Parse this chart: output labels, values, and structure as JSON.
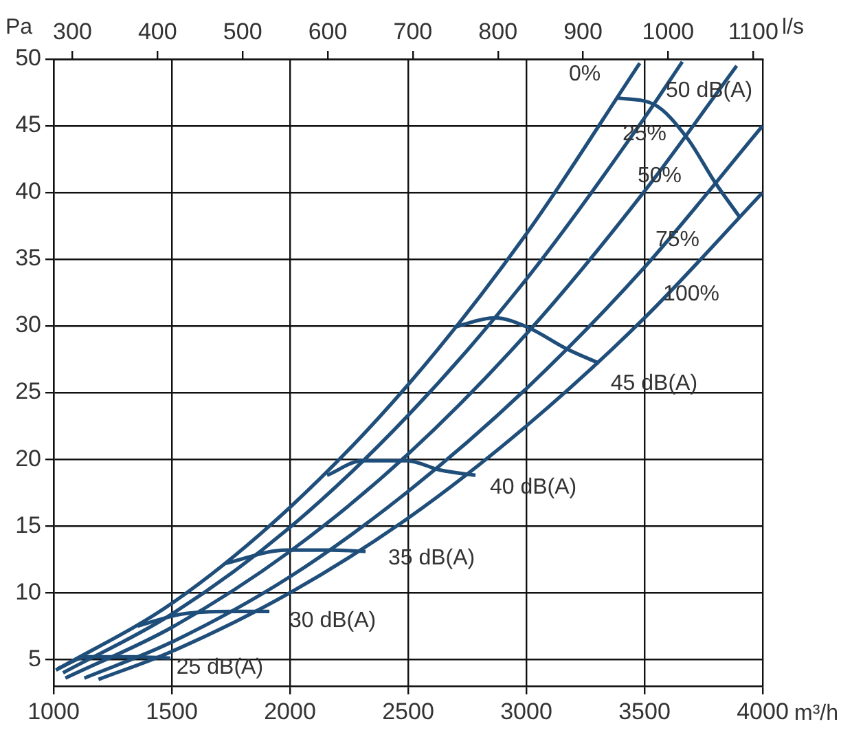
{
  "chart_data": {
    "type": "line",
    "xlabel": "m³/h",
    "ylabel": "Pa",
    "x2label": "l/s",
    "xlim": [
      1000,
      4000
    ],
    "xticks": [
      1000,
      1500,
      2000,
      2500,
      3000,
      3500,
      4000
    ],
    "ylim": [
      3,
      50
    ],
    "yticks": [
      5,
      10,
      15,
      20,
      25,
      30,
      35,
      40,
      45,
      50
    ],
    "x2lim": [
      277.8,
      1111.1
    ],
    "x2ticks": [
      300,
      400,
      500,
      600,
      700,
      800,
      900,
      1000,
      1100
    ],
    "grid": true,
    "series": [
      {
        "name": "0%",
        "color": "#1f4e7a",
        "x": [
          1010,
          1500,
          2000,
          2500,
          3000,
          3480
        ],
        "values": [
          4.2,
          9.2,
          16.4,
          25.6,
          36.9,
          49.7
        ]
      },
      {
        "name": "25%",
        "color": "#1f4e7a",
        "x": [
          1040,
          1500,
          2000,
          2500,
          3000,
          3500,
          3660
        ],
        "values": [
          4.0,
          8.4,
          14.9,
          23.3,
          33.5,
          45.6,
          49.8
        ]
      },
      {
        "name": "50%",
        "color": "#1f4e7a",
        "x": [
          1050,
          1500,
          2000,
          2500,
          3000,
          3500,
          3890
        ],
        "values": [
          3.6,
          7.4,
          13.1,
          20.4,
          29.4,
          40.1,
          49.5
        ]
      },
      {
        "name": "75%",
        "color": "#1f4e7a",
        "x": [
          1130,
          1500,
          2000,
          2500,
          3000,
          3500,
          4000
        ],
        "values": [
          3.6,
          6.3,
          11.2,
          17.6,
          25.3,
          34.4,
          45.0
        ]
      },
      {
        "name": "100%",
        "color": "#1f4e7a",
        "x": [
          1190,
          1500,
          2000,
          2500,
          3000,
          3500,
          4000
        ],
        "values": [
          3.5,
          5.6,
          10.0,
          15.6,
          22.5,
          30.6,
          40.0
        ]
      },
      {
        "name": "50 dB(A)",
        "color": "#1f4e7a",
        "x": [
          3378,
          3541,
          3680,
          3797,
          3901
        ],
        "values": [
          47.1,
          46.6,
          44.1,
          40.8,
          38.2
        ]
      },
      {
        "name": "45 dB(A)",
        "color": "#1f4e7a",
        "x": [
          2692,
          2866,
          3006,
          3169,
          3308
        ],
        "values": [
          29.9,
          30.6,
          29.9,
          28.3,
          27.2
        ]
      },
      {
        "name": "40 dB(A)",
        "color": "#1f4e7a",
        "x": [
          2157,
          2308,
          2494,
          2634,
          2785
        ],
        "values": [
          18.8,
          19.9,
          19.9,
          19.2,
          18.8
        ]
      },
      {
        "name": "35 dB(A)",
        "color": "#1f4e7a",
        "x": [
          1727,
          1983,
          2169,
          2320
        ],
        "values": [
          12.2,
          13.2,
          13.2,
          13.1
        ]
      },
      {
        "name": "30 dB(A)",
        "color": "#1f4e7a",
        "x": [
          1355,
          1541,
          1750,
          1913
        ],
        "values": [
          7.5,
          8.4,
          8.6,
          8.6
        ]
      },
      {
        "name": "25 dB(A)",
        "color": "#1f4e7a",
        "x": [
          1017,
          1145,
          1331,
          1494
        ],
        "values": [
          4.3,
          5.2,
          5.2,
          5.1
        ]
      }
    ]
  }
}
